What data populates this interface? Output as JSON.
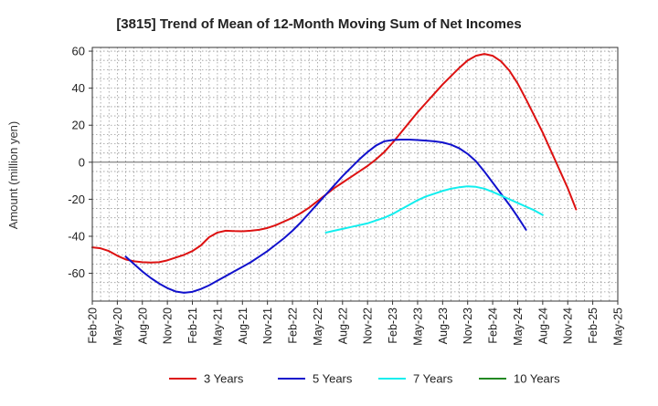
{
  "chart_data": {
    "type": "line",
    "title": "[3815]  Trend of Mean of 12-Month Moving Sum of Net Incomes",
    "ylabel": "Amount (million yen)",
    "xlabel": "",
    "ylim": [
      -75,
      62
    ],
    "yticks": [
      60,
      40,
      20,
      0,
      -20,
      -40,
      -60
    ],
    "x_labels": [
      "Feb-20",
      "May-20",
      "Aug-20",
      "Nov-20",
      "Feb-21",
      "May-21",
      "Aug-21",
      "Nov-21",
      "Feb-22",
      "May-22",
      "Aug-22",
      "Nov-22",
      "Feb-23",
      "May-23",
      "Aug-23",
      "Nov-23",
      "Feb-24",
      "May-24",
      "Aug-24",
      "Nov-24",
      "Feb-25",
      "May-25"
    ],
    "grid": true,
    "legend_position": "bottom",
    "series": [
      {
        "name": "3 Years",
        "color": "#dd1111",
        "points": [
          [
            "Feb-20",
            -46
          ],
          [
            "Mar-20",
            -46.5
          ],
          [
            "Apr-20",
            -48
          ],
          [
            "May-20",
            -50.5
          ],
          [
            "Jun-20",
            -52.5
          ],
          [
            "Jul-20",
            -53.5
          ],
          [
            "Aug-20",
            -54
          ],
          [
            "Sep-20",
            -54.2
          ],
          [
            "Oct-20",
            -54
          ],
          [
            "Nov-20",
            -53
          ],
          [
            "Dec-20",
            -51.5
          ],
          [
            "Jan-21",
            -50
          ],
          [
            "Feb-21",
            -48
          ],
          [
            "Mar-21",
            -45
          ],
          [
            "Apr-21",
            -40.5
          ],
          [
            "May-21",
            -38
          ],
          [
            "Jun-21",
            -37
          ],
          [
            "Jul-21",
            -37.2
          ],
          [
            "Aug-21",
            -37.3
          ],
          [
            "Sep-21",
            -37
          ],
          [
            "Oct-21",
            -36.5
          ],
          [
            "Nov-21",
            -35.5
          ],
          [
            "Dec-21",
            -34
          ],
          [
            "Jan-22",
            -32
          ],
          [
            "Feb-22",
            -30
          ],
          [
            "Mar-22",
            -27.5
          ],
          [
            "Apr-22",
            -24.5
          ],
          [
            "May-22",
            -21
          ],
          [
            "Jun-22",
            -17.5
          ],
          [
            "Jul-22",
            -14
          ],
          [
            "Aug-22",
            -11
          ],
          [
            "Sep-22",
            -8
          ],
          [
            "Oct-22",
            -5
          ],
          [
            "Nov-22",
            -2
          ],
          [
            "Dec-22",
            1.5
          ],
          [
            "Jan-23",
            5.5
          ],
          [
            "Feb-23",
            10.5
          ],
          [
            "Mar-23",
            16
          ],
          [
            "Apr-23",
            21.5
          ],
          [
            "May-23",
            27
          ],
          [
            "Jun-23",
            32
          ],
          [
            "Jul-23",
            37
          ],
          [
            "Aug-23",
            42
          ],
          [
            "Sep-23",
            46.5
          ],
          [
            "Oct-23",
            51
          ],
          [
            "Nov-23",
            55
          ],
          [
            "Dec-23",
            57.5
          ],
          [
            "Jan-24",
            58.5
          ],
          [
            "Feb-24",
            57.5
          ],
          [
            "Mar-24",
            54.5
          ],
          [
            "Apr-24",
            49.5
          ],
          [
            "May-24",
            42.5
          ],
          [
            "Jun-24",
            34
          ],
          [
            "Jul-24",
            25
          ],
          [
            "Aug-24",
            16
          ],
          [
            "Sep-24",
            6
          ],
          [
            "Oct-24",
            -4
          ],
          [
            "Nov-24",
            -14
          ],
          [
            "Dec-24",
            -25.5
          ]
        ]
      },
      {
        "name": "5 Years",
        "color": "#1111cc",
        "points": [
          [
            "Jun-20",
            -51
          ],
          [
            "Jul-20",
            -55
          ],
          [
            "Aug-20",
            -59
          ],
          [
            "Sep-20",
            -62.5
          ],
          [
            "Oct-20",
            -65.5
          ],
          [
            "Nov-20",
            -68
          ],
          [
            "Dec-20",
            -69.8
          ],
          [
            "Jan-21",
            -70.5
          ],
          [
            "Feb-21",
            -70
          ],
          [
            "Mar-21",
            -68.5
          ],
          [
            "Apr-21",
            -66.5
          ],
          [
            "May-21",
            -64
          ],
          [
            "Jun-21",
            -61.5
          ],
          [
            "Jul-21",
            -59
          ],
          [
            "Aug-21",
            -56.5
          ],
          [
            "Sep-21",
            -54
          ],
          [
            "Oct-21",
            -51
          ],
          [
            "Nov-21",
            -48
          ],
          [
            "Dec-21",
            -44.5
          ],
          [
            "Jan-22",
            -41
          ],
          [
            "Feb-22",
            -37
          ],
          [
            "Mar-22",
            -32.5
          ],
          [
            "Apr-22",
            -27.5
          ],
          [
            "May-22",
            -22.5
          ],
          [
            "Jun-22",
            -17.5
          ],
          [
            "Jul-22",
            -12.5
          ],
          [
            "Aug-22",
            -7.5
          ],
          [
            "Sep-22",
            -3
          ],
          [
            "Oct-22",
            1.5
          ],
          [
            "Nov-22",
            5.5
          ],
          [
            "Dec-22",
            9
          ],
          [
            "Jan-23",
            11.3
          ],
          [
            "Feb-23",
            12
          ],
          [
            "Mar-23",
            12.2
          ],
          [
            "Apr-23",
            12.2
          ],
          [
            "May-23",
            12
          ],
          [
            "Jun-23",
            11.7
          ],
          [
            "Jul-23",
            11.3
          ],
          [
            "Aug-23",
            10.7
          ],
          [
            "Sep-23",
            9.5
          ],
          [
            "Oct-23",
            7.5
          ],
          [
            "Nov-23",
            4.5
          ],
          [
            "Dec-23",
            0.5
          ],
          [
            "Jan-24",
            -5
          ],
          [
            "Feb-24",
            -11
          ],
          [
            "Mar-24",
            -17
          ],
          [
            "Apr-24",
            -23
          ],
          [
            "May-24",
            -29.5
          ],
          [
            "Jun-24",
            -36.5
          ]
        ]
      },
      {
        "name": "7 Years",
        "color": "#11eeee",
        "points": [
          [
            "Jun-22",
            -38
          ],
          [
            "Jul-22",
            -37
          ],
          [
            "Aug-22",
            -36
          ],
          [
            "Sep-22",
            -35
          ],
          [
            "Oct-22",
            -34
          ],
          [
            "Nov-22",
            -33
          ],
          [
            "Dec-22",
            -31.5
          ],
          [
            "Jan-23",
            -30
          ],
          [
            "Feb-23",
            -28
          ],
          [
            "Mar-23",
            -25.5
          ],
          [
            "Apr-23",
            -23
          ],
          [
            "May-23",
            -20.5
          ],
          [
            "Jun-23",
            -18.5
          ],
          [
            "Jul-23",
            -17
          ],
          [
            "Aug-23",
            -15.5
          ],
          [
            "Sep-23",
            -14.3
          ],
          [
            "Oct-23",
            -13.5
          ],
          [
            "Nov-23",
            -13
          ],
          [
            "Dec-23",
            -13.3
          ],
          [
            "Jan-24",
            -14.3
          ],
          [
            "Feb-24",
            -16
          ],
          [
            "Mar-24",
            -18
          ],
          [
            "Apr-24",
            -20
          ],
          [
            "May-24",
            -22
          ],
          [
            "Jun-24",
            -24
          ],
          [
            "Jul-24",
            -26
          ],
          [
            "Aug-24",
            -28.5
          ]
        ]
      },
      {
        "name": "10 Years",
        "color": "#228822",
        "points": []
      }
    ]
  }
}
